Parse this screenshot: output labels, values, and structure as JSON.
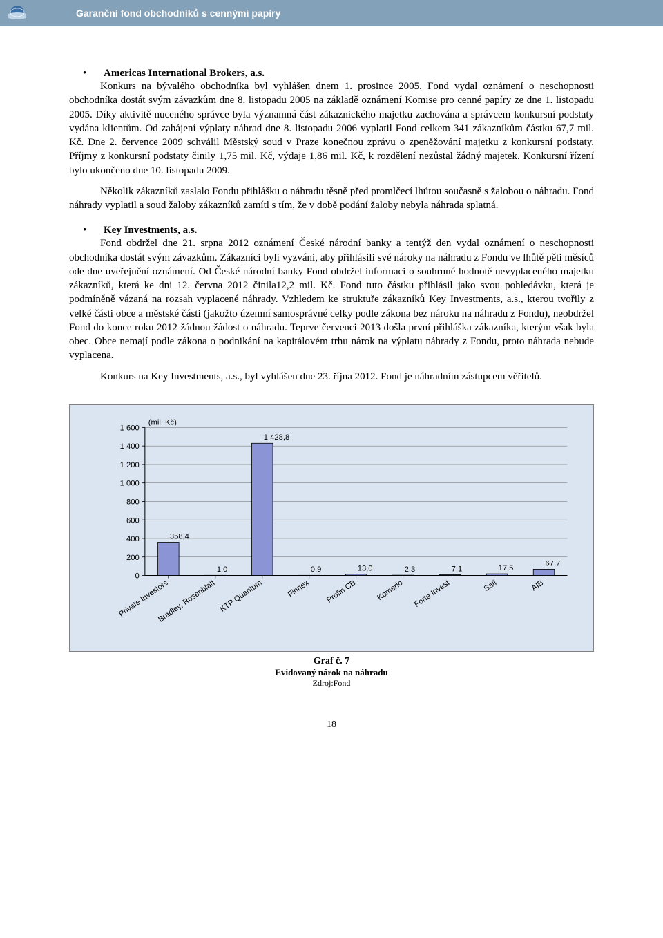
{
  "header": {
    "title": "Garanční fond obchodníků s cennými papíry"
  },
  "section1": {
    "title": "Americas International Brokers, a.s.",
    "body": "Konkurs na bývalého obchodníka byl vyhlášen dnem 1. prosince 2005. Fond vydal oznámení o neschopnosti obchodníka dostát svým závazkům dne 8. listopadu 2005 na základě oznámení Komise pro cenné papíry ze dne 1. listopadu 2005. Díky aktivitě nuceného správce byla významná část zákaznického majetku zachována a správcem konkursní podstaty vydána klientům. Od zahájení výplaty náhrad dne 8. listopadu 2006 vyplatil Fond celkem 341 zákazníkům částku 67,7 mil. Kč. Dne 2. července 2009 schválil Městský soud v Praze konečnou zprávu o zpeněžování majetku z konkursní podstaty. Příjmy z konkursní podstaty činily 1,75 mil. Kč, výdaje 1,86 mil. Kč, k rozdělení nezůstal žádný majetek. Konkursní řízení bylo ukončeno dne 10. listopadu 2009.",
    "body2": "Několik zákazníků zaslalo Fondu přihlášku o náhradu těsně před promlčecí lhůtou současně s žalobou o náhradu. Fond náhrady vyplatil a soud žaloby zákazníků zamítl s tím, že v době podání žaloby nebyla náhrada splatná."
  },
  "section2": {
    "title": "Key Investments, a.s.",
    "body": "Fond obdržel dne 21. srpna 2012 oznámení České národní banky a tentýž den vydal oznámení o neschopnosti obchodníka dostát svým závazkům. Zákazníci byli vyzváni, aby přihlásili své nároky na náhradu z Fondu ve lhůtě pěti měsíců ode dne uveřejnění oznámení. Od České národní banky Fond obdržel informaci o souhrnné hodnotě nevyplaceného majetku zákazníků, která ke dni 12. června 2012 činila12,2 mil. Kč. Fond tuto částku přihlásil jako svou pohledávku, která je podmíněně vázaná na rozsah vyplacené náhrady. Vzhledem ke struktuře zákazníků Key Investments, a.s., kterou tvořily z velké části obce a městské části (jakožto územní samosprávné celky podle zákona bez nároku na náhradu z Fondu), neobdržel Fond do konce roku 2012 žádnou žádost o náhradu. Teprve červenci 2013 došla první přihláška zákazníka, kterým však byla obec. Obce nemají podle zákona o podnikání na kapitálovém trhu nárok na výplatu náhrady z Fondu, proto náhrada nebude vyplacena.",
    "body2": "Konkurs na Key Investments, a.s., byl vyhlášen dne 23. října 2012. Fond je náhradním zástupcem věřitelů."
  },
  "chart": {
    "type": "bar",
    "unit_label": "(mil. Kč)",
    "categories": [
      "Private Investors",
      "Bradley, Rosenblatt",
      "KTP Quantum",
      "Finnex",
      "Profin CB",
      "Komerio",
      "Forte Invest",
      "Sati",
      "AIB"
    ],
    "values": [
      358.4,
      1.0,
      1428.8,
      0.9,
      13.0,
      2.3,
      7.1,
      17.5,
      67.7
    ],
    "value_labels": [
      "358,4",
      "1,0",
      "1 428,8",
      "0,9",
      "13,0",
      "2,3",
      "7,1",
      "17,5",
      "67,7"
    ],
    "bar_fill": "#8b95d6",
    "bar_stroke": "#000000",
    "background": "#dbe5f1",
    "grid_color": "#808080",
    "axis_color": "#000000",
    "text_color": "#000000",
    "ylim": [
      0,
      1600
    ],
    "ytick_step": 200,
    "yticks": [
      "0",
      "200",
      "400",
      "600",
      "800",
      "1 000",
      "1 200",
      "1 400",
      "1 600"
    ],
    "tick_fontsize": 11,
    "label_fontsize": 11,
    "value_label_fontsize": 11,
    "bar_width_ratio": 0.45
  },
  "caption": {
    "line1": "Graf č. 7",
    "line2": "Evidovaný nárok na náhradu",
    "line3": "Zdroj:Fond"
  },
  "page_number": "18"
}
